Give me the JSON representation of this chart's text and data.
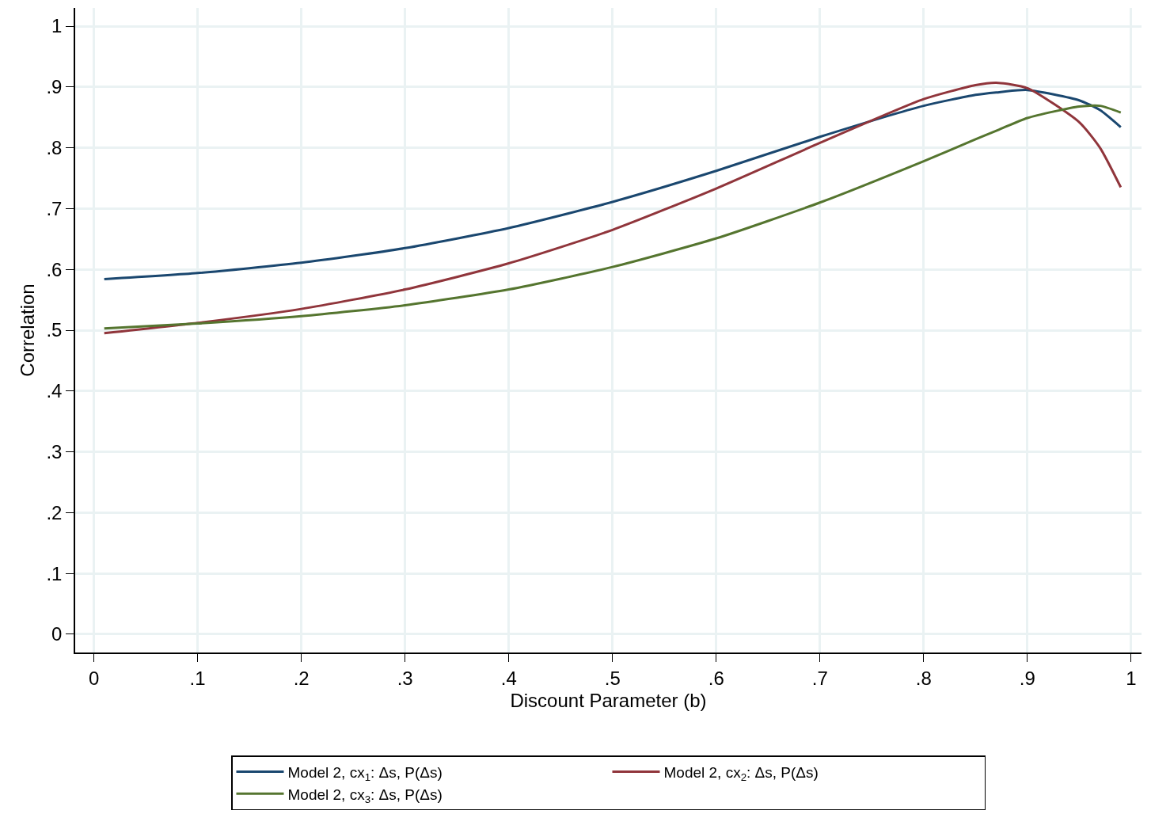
{
  "chart_data": {
    "type": "line",
    "xlabel": "Discount Parameter (b)",
    "ylabel": "Correlation",
    "x": [
      0.01,
      0.1,
      0.2,
      0.3,
      0.4,
      0.5,
      0.6,
      0.7,
      0.8,
      0.85,
      0.87,
      0.9,
      0.95,
      0.97,
      0.99
    ],
    "series": [
      {
        "name": "Model 2, cx$_{1}$: Δs, P(Δs)",
        "color": "#1a476f",
        "values": [
          0.584,
          0.594,
          0.611,
          0.635,
          0.668,
          0.711,
          0.762,
          0.818,
          0.869,
          0.887,
          0.891,
          0.895,
          0.878,
          0.862,
          0.834
        ]
      },
      {
        "name": "Model 2, cx$_{2}$: Δs, P(Δs)",
        "color": "#90353b",
        "values": [
          0.495,
          0.512,
          0.535,
          0.567,
          0.61,
          0.665,
          0.733,
          0.808,
          0.88,
          0.903,
          0.907,
          0.898,
          0.842,
          0.8,
          0.735
        ]
      },
      {
        "name": "Model 2, cx$_{3}$: Δs, P(Δs)",
        "color": "#55752f",
        "values": [
          0.503,
          0.511,
          0.523,
          0.541,
          0.567,
          0.604,
          0.651,
          0.71,
          0.778,
          0.814,
          0.828,
          0.849,
          0.868,
          0.869,
          0.858
        ]
      }
    ],
    "xlim": [
      -0.018,
      1.01
    ],
    "ylim": [
      -0.03,
      1.03
    ],
    "xticks": [
      0,
      {
        "value": 0.1,
        "label": ".1"
      },
      {
        "value": 0.2,
        "label": ".2"
      },
      {
        "value": 0.3,
        "label": ".3"
      },
      {
        "value": 0.4,
        "label": ".4"
      },
      {
        "value": 0.5,
        "label": ".5"
      },
      {
        "value": 0.6,
        "label": ".6"
      },
      {
        "value": 0.7,
        "label": ".7"
      },
      {
        "value": 0.8,
        "label": ".8"
      },
      {
        "value": 0.9,
        "label": ".9"
      },
      1
    ],
    "yticks": [
      0,
      {
        "value": 0.1,
        "label": ".1"
      },
      {
        "value": 0.2,
        "label": ".2"
      },
      {
        "value": 0.3,
        "label": ".3"
      },
      {
        "value": 0.4,
        "label": ".4"
      },
      {
        "value": 0.5,
        "label": ".5"
      },
      {
        "value": 0.6,
        "label": ".6"
      },
      {
        "value": 0.7,
        "label": ".7"
      },
      {
        "value": 0.8,
        "label": ".8"
      },
      {
        "value": 0.9,
        "label": ".9"
      },
      1
    ],
    "grid": true,
    "legend": "bottom",
    "marker": "none",
    "line_style": "solid"
  }
}
